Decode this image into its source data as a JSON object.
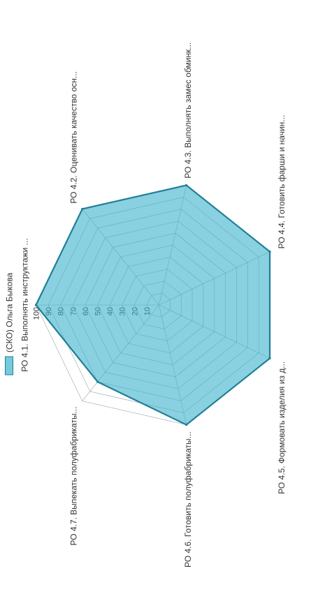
{
  "chart_data": {
    "type": "radar",
    "title": "",
    "categories": [
      "РО 4.1. Выполнять инструктажи ...",
      "РО 4.2. Оценивать качество осн...",
      "РО 4.3. Выполнять замес обминк...",
      "РО 4.4. Готовить фарши и начин...",
      "РО 4.5. Формовать изделия из д...",
      "РО 4.6. Готовить полуфабрикаты...",
      "РО 4.7. Выпекать полуфабрикаты..."
    ],
    "series": [
      {
        "name": "(СКО) Ольга Быкова",
        "values": [
          100,
          100,
          100,
          100,
          100,
          100,
          80
        ],
        "color": "#3bb3cc"
      }
    ],
    "rlim": [
      0,
      100
    ],
    "ticks": [
      "10",
      "20",
      "30",
      "40",
      "50",
      "60",
      "70",
      "80",
      "90",
      "100"
    ],
    "legend_position": "top",
    "grid": true
  }
}
